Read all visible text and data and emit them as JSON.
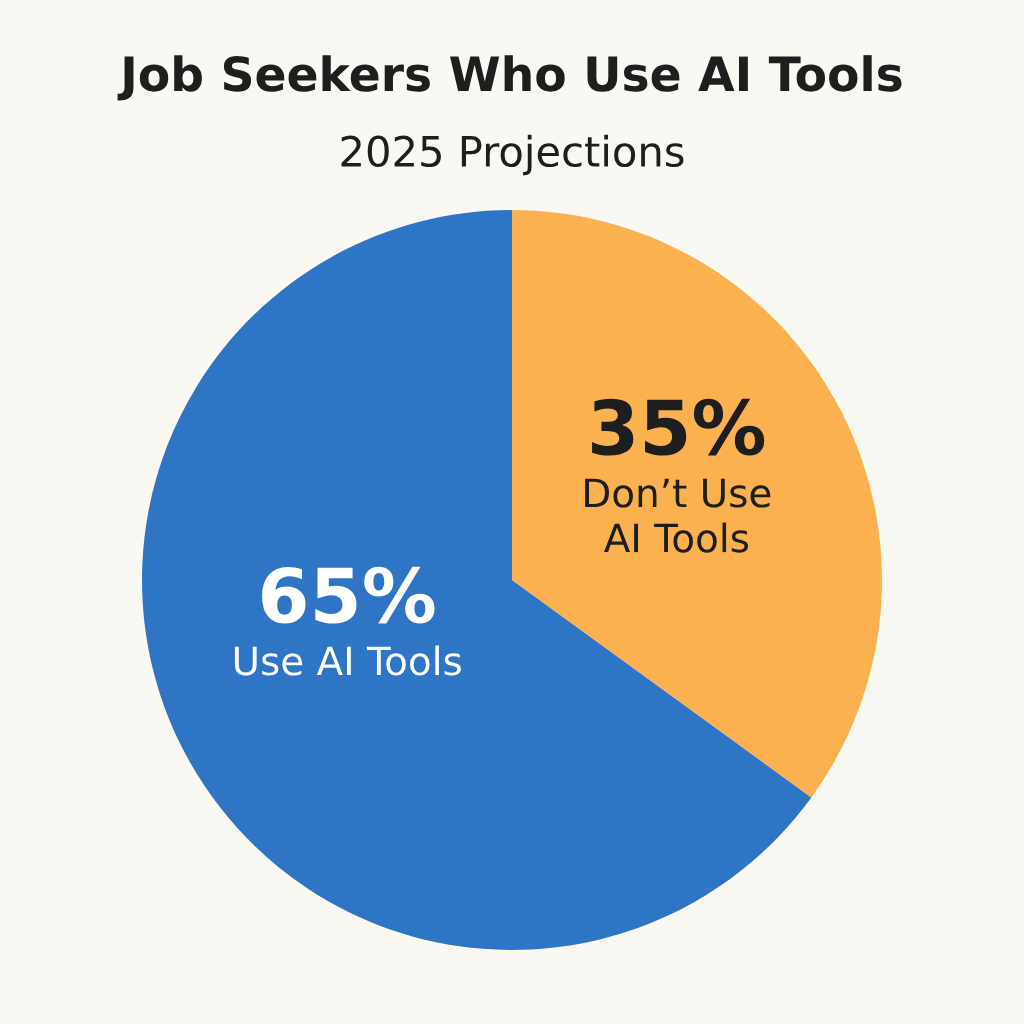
{
  "chart_data": {
    "type": "pie",
    "title": "Job Seekers Who Use AI Tools",
    "subtitle": "2025 Projections",
    "categories": [
      "Use AI Tools",
      "Don’t Use AI Tools"
    ],
    "values": [
      65,
      35
    ],
    "colors": [
      "#2e75c6",
      "#fbb150"
    ],
    "value_labels": [
      "65%",
      "35%"
    ],
    "legend": false
  }
}
